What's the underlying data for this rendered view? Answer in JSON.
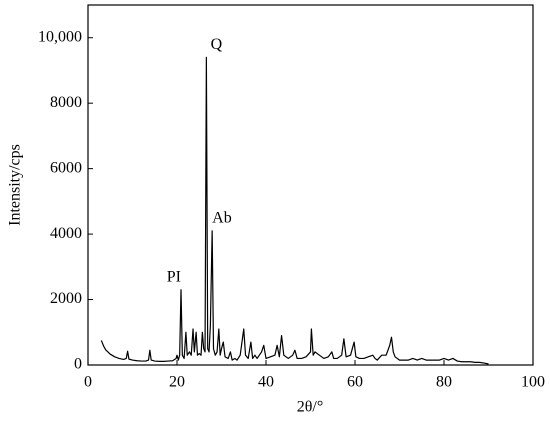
{
  "chart_data": {
    "type": "line",
    "x_label": "2θ/°",
    "y_label": "Intensity/cps",
    "xlim": [
      0,
      100
    ],
    "xticks": [
      0,
      20,
      40,
      60,
      80,
      100
    ],
    "ylim": [
      0,
      11000
    ],
    "yticks": [
      0,
      2000,
      4000,
      6000,
      8000,
      {
        "value": 10000,
        "label": "10,000"
      }
    ],
    "series": [
      {
        "color": "#000000",
        "x": [
          3,
          3.5,
          4,
          5,
          6,
          7,
          8,
          8.6,
          8.9,
          9.2,
          10,
          11,
          12,
          13,
          13.6,
          13.9,
          14.2,
          15,
          16,
          17,
          18,
          19,
          19.8,
          20,
          20.3,
          20.6,
          20.9,
          21.2,
          21.6,
          22,
          22.3,
          22.8,
          23.2,
          23.6,
          23.9,
          24.3,
          24.6,
          25,
          25.4,
          25.7,
          26,
          26.3,
          26.6,
          26.9,
          27.2,
          27.5,
          27.9,
          28.2,
          28.6,
          29,
          29.4,
          29.7,
          30,
          30.4,
          30.8,
          31.5,
          32,
          32.4,
          33,
          33.5,
          34.2,
          35,
          35.4,
          36,
          36.6,
          37,
          37.5,
          38,
          39,
          39.5,
          40,
          41,
          42,
          42.5,
          43,
          43.5,
          44,
          45,
          46,
          46.5,
          47,
          48,
          49,
          50,
          50.2,
          50.6,
          51,
          52,
          53,
          54,
          54.8,
          55.2,
          56,
          57,
          57.5,
          58,
          59,
          59.8,
          60.2,
          61,
          62,
          63,
          64,
          64.5,
          65,
          66,
          67,
          67.8,
          68.2,
          68.6,
          69,
          70,
          71,
          72,
          73,
          74,
          75,
          76,
          77,
          78,
          79,
          80,
          81,
          82,
          83,
          84,
          85,
          86,
          87,
          88,
          89,
          90
        ],
        "values": [
          750,
          580,
          460,
          330,
          250,
          200,
          170,
          200,
          420,
          180,
          150,
          130,
          120,
          120,
          150,
          450,
          150,
          120,
          110,
          110,
          120,
          130,
          200,
          300,
          150,
          300,
          2300,
          300,
          200,
          1000,
          300,
          400,
          300,
          1100,
          400,
          1000,
          300,
          350,
          300,
          1000,
          500,
          400,
          9400,
          500,
          400,
          1200,
          4100,
          500,
          300,
          400,
          1100,
          300,
          500,
          700,
          250,
          200,
          400,
          150,
          200,
          150,
          300,
          1100,
          300,
          200,
          700,
          200,
          300,
          200,
          400,
          600,
          200,
          250,
          300,
          600,
          250,
          900,
          300,
          200,
          300,
          450,
          200,
          200,
          250,
          400,
          1100,
          300,
          400,
          300,
          200,
          250,
          400,
          200,
          200,
          300,
          800,
          250,
          300,
          700,
          250,
          200,
          200,
          250,
          300,
          200,
          150,
          300,
          300,
          600,
          850,
          400,
          250,
          150,
          150,
          150,
          200,
          150,
          200,
          150,
          150,
          150,
          150,
          200,
          150,
          200,
          120,
          100,
          100,
          100,
          80,
          80,
          60,
          30
        ]
      }
    ],
    "annotations": [
      {
        "text": "PI",
        "x": 20.9
      },
      {
        "text": "Q",
        "x": 26.6
      },
      {
        "text": "Ab",
        "x": 27.9
      }
    ]
  }
}
